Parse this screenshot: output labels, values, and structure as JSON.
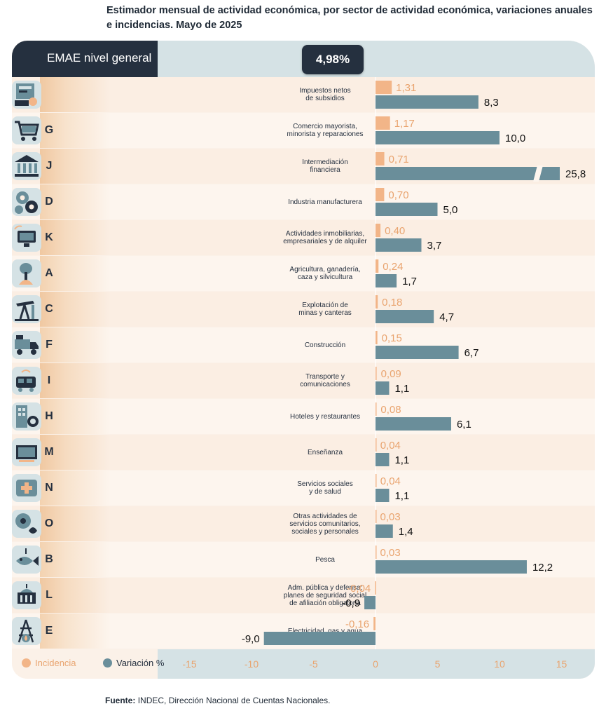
{
  "title": "Estimador mensual de actividad económica, por sector de actividad económica, variaciones anuales e incidencias. Mayo de 2025",
  "header": {
    "label": "EMAE nivel general",
    "total": "4,98%"
  },
  "legend": {
    "incidence": "Incidencia",
    "variation": "Variación %"
  },
  "source": {
    "label": "Fuente:",
    "text": "INDEC, Dirección Nacional de Cuentas Nacionales."
  },
  "colors": {
    "incidence": "#f2b588",
    "variation": "#6a8e9a",
    "dark": "#25303f"
  },
  "chart_data": {
    "type": "bar",
    "orientation": "horizontal",
    "xlim": [
      -17,
      17
    ],
    "xticks": [
      -15,
      -10,
      -5,
      0,
      5,
      10,
      15
    ],
    "xtick_labels": [
      "-15",
      "-10",
      "-5",
      "0",
      "5",
      "10",
      "15"
    ],
    "broken_axis_value": 25.8,
    "series": [
      {
        "name": "Incidencia",
        "key": "incidence"
      },
      {
        "name": "Variación %",
        "key": "variation"
      }
    ],
    "sectors": [
      {
        "letter": "",
        "name": "Impuestos netos\nde subsidios",
        "incidence": 1.31,
        "incidence_label": "1,31",
        "variation": 8.3,
        "variation_label": "8,3",
        "icon": "taxes-icon"
      },
      {
        "letter": "G",
        "name": "Comercio mayorista,\nminorista y reparaciones",
        "incidence": 1.17,
        "incidence_label": "1,17",
        "variation": 10.0,
        "variation_label": "10,0",
        "icon": "shopping-cart-icon"
      },
      {
        "letter": "J",
        "name": "Intermediación\nfinanciera",
        "incidence": 0.71,
        "incidence_label": "0,71",
        "variation": 25.8,
        "variation_label": "25,8",
        "icon": "bank-icon"
      },
      {
        "letter": "D",
        "name": "Industria manufacturera",
        "incidence": 0.7,
        "incidence_label": "0,70",
        "variation": 5.0,
        "variation_label": "5,0",
        "icon": "gears-icon"
      },
      {
        "letter": "K",
        "name": "Actividades inmobiliarias,\nempresariales y de alquiler",
        "incidence": 0.4,
        "incidence_label": "0,40",
        "variation": 3.7,
        "variation_label": "3,7",
        "icon": "computer-icon"
      },
      {
        "letter": "A",
        "name": "Agricultura, ganadería,\ncaza y silvicultura",
        "incidence": 0.24,
        "incidence_label": "0,24",
        "variation": 1.7,
        "variation_label": "1,7",
        "icon": "agriculture-icon"
      },
      {
        "letter": "C",
        "name": "Explotación de\nminas y canteras",
        "incidence": 0.18,
        "incidence_label": "0,18",
        "variation": 4.7,
        "variation_label": "4,7",
        "icon": "oil-pump-icon"
      },
      {
        "letter": "F",
        "name": "Construcción",
        "incidence": 0.15,
        "incidence_label": "0,15",
        "variation": 6.7,
        "variation_label": "6,7",
        "icon": "truck-icon"
      },
      {
        "letter": "I",
        "name": "Transporte y\ncomunicaciones",
        "incidence": 0.09,
        "incidence_label": "0,09",
        "variation": 1.1,
        "variation_label": "1,1",
        "icon": "transport-icon"
      },
      {
        "letter": "H",
        "name": "Hoteles y restaurantes",
        "incidence": 0.08,
        "incidence_label": "0,08",
        "variation": 6.1,
        "variation_label": "6,1",
        "icon": "hotel-icon"
      },
      {
        "letter": "M",
        "name": "Enseñanza",
        "incidence": 0.04,
        "incidence_label": "0,04",
        "variation": 1.1,
        "variation_label": "1,1",
        "icon": "education-icon"
      },
      {
        "letter": "N",
        "name": "Servicios sociales\ny de salud",
        "incidence": 0.04,
        "incidence_label": "0,04",
        "variation": 1.1,
        "variation_label": "1,1",
        "icon": "health-icon"
      },
      {
        "letter": "O",
        "name": "Otras actividades de\nservicios comunitarios,\nsociales y personales",
        "incidence": 0.03,
        "incidence_label": "0,03",
        "variation": 1.4,
        "variation_label": "1,4",
        "icon": "community-icon"
      },
      {
        "letter": "B",
        "name": "Pesca",
        "incidence": 0.03,
        "incidence_label": "0,03",
        "variation": 12.2,
        "variation_label": "12,2",
        "icon": "fish-icon"
      },
      {
        "letter": "L",
        "name": "Adm. pública y defensa;\nplanes de seguridad social\nde afiliación obligatoria",
        "incidence": -0.04,
        "incidence_label": "-0,04",
        "variation": -0.9,
        "variation_label": "-0,9",
        "icon": "government-icon"
      },
      {
        "letter": "E",
        "name": "Electricidad, gas y agua",
        "incidence": -0.16,
        "incidence_label": "-0,16",
        "variation": -9.0,
        "variation_label": "-9,0",
        "icon": "utilities-icon"
      }
    ]
  }
}
